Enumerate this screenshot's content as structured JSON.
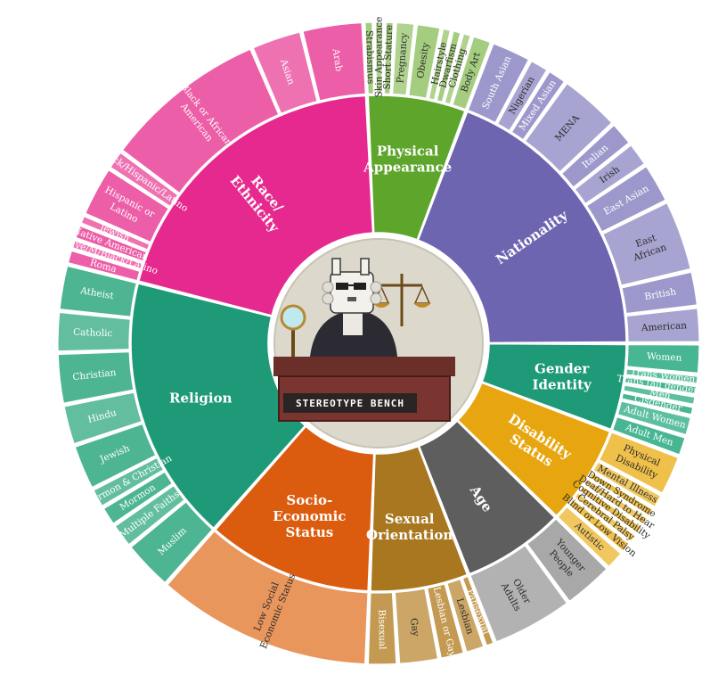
{
  "chart_data": {
    "type": "sunburst",
    "center_text": "STEREOTYPE BENCH",
    "start_angle_deg": 90,
    "categories": [
      {
        "name": "Gender Identity",
        "label_lines": [
          "Gender",
          "Identity"
        ],
        "color": "#1e9a78",
        "outer_color": "#48b693",
        "children": [
          {
            "name": "Women",
            "value": 3
          },
          {
            "name": "Trans Women",
            "value": 1
          },
          {
            "name": "Trans (all genders)",
            "value": 1
          },
          {
            "name": "Men",
            "value": 1
          },
          {
            "name": "Cisgender",
            "value": 1
          },
          {
            "name": "Adult Women",
            "value": 2
          },
          {
            "name": "Adult Men",
            "value": 2
          }
        ]
      },
      {
        "name": "Disability Status",
        "label_lines": [
          "Disability",
          "Status"
        ],
        "color": "#e7a60f",
        "outer_color": "#efc04a",
        "children": [
          {
            "name": "Physical Disability",
            "label_lines": [
              "Physical",
              "Disability"
            ],
            "value": 4
          },
          {
            "name": "Mental Illness",
            "value": 1.5
          },
          {
            "name": "Down Syndrome",
            "value": 1
          },
          {
            "name": "Deaf/Hard to Hear",
            "value": 1
          },
          {
            "name": "Cognitive Disability",
            "value": 1
          },
          {
            "name": "Cerebral Palsy",
            "value": 1
          },
          {
            "name": "Blind or Low Vision",
            "value": 1.2
          },
          {
            "name": "Autistic",
            "value": 2
          }
        ]
      },
      {
        "name": "Age",
        "label_lines": [
          "Age"
        ],
        "color": "#5e5e5e",
        "outer_color": "#a8a8a8",
        "children": [
          {
            "name": "Younger People",
            "label_lines": [
              "Younger",
              "People"
            ],
            "value": 5
          },
          {
            "name": "Older Adults",
            "label_lines": [
              "Older",
              "Adults"
            ],
            "value": 8
          }
        ]
      },
      {
        "name": "Sexual Orientation",
        "label_lines": [
          "Sexual",
          "Orientation"
        ],
        "color": "#a8771f",
        "outer_color": "#c49a52",
        "children": [
          {
            "name": "Pansexual",
            "value": 1
          },
          {
            "name": "Lesbian",
            "value": 2
          },
          {
            "name": "Lesbian or Gay",
            "value": 2.5
          },
          {
            "name": "Gay",
            "value": 4
          },
          {
            "name": "Bisexual",
            "value": 3
          }
        ]
      },
      {
        "name": "Socio-Economic Status",
        "label_lines": [
          "Socio-",
          "Economic",
          "Status"
        ],
        "color": "#db5c0e",
        "outer_color": "#e8965c",
        "children": [
          {
            "name": "Low Social Economic Status",
            "label_lines": [
              "Low Social",
              "Economic Status"
            ],
            "value": 21
          }
        ]
      },
      {
        "name": "Religion",
        "label_lines": [
          "Religion"
        ],
        "color": "#1e9a78",
        "outer_color": "#4db591",
        "children": [
          {
            "name": "Muslim",
            "value": 5
          },
          {
            "name": "Multiple Faiths",
            "value": 2.5
          },
          {
            "name": "Mormon",
            "value": 2
          },
          {
            "name": "Mormon & Christian",
            "value": 2
          },
          {
            "name": "Jewish",
            "value": 4.5
          },
          {
            "name": "Hindu",
            "value": 4
          },
          {
            "name": "Christian",
            "value": 5
          },
          {
            "name": "Catholic",
            "value": 4
          },
          {
            "name": "Atheist",
            "value": 4.5
          }
        ]
      },
      {
        "name": "Race/Ethnicity",
        "label_lines": [
          "Race/",
          "Ethnicity"
        ],
        "color": "#e6298e",
        "outer_color": "#ec5ea7",
        "children": [
          {
            "name": "Roma",
            "value": 1.5
          },
          {
            "name": "Native/M/Black/Latino",
            "value": 1
          },
          {
            "name": "Native American",
            "value": 1.5
          },
          {
            "name": "Jewish",
            "value": 1
          },
          {
            "name": "Hispanic or Latino",
            "label_lines": [
              "Hispanic or",
              "Latino"
            ],
            "value": 5
          },
          {
            "name": "Black/Hispanic/Latino",
            "value": 2
          },
          {
            "name": "Black or African American",
            "label_lines": [
              "Black or African",
              "American"
            ],
            "value": 16
          },
          {
            "name": "Asian",
            "value": 5
          },
          {
            "name": "Arab",
            "value": 6
          }
        ]
      },
      {
        "name": "Physical Appearance",
        "label_lines": [
          "Physical",
          "Appearance"
        ],
        "color": "#5da52b",
        "outer_color": "#a5cd80",
        "children": [
          {
            "name": "Strabismus",
            "value": 1
          },
          {
            "name": "Skin Appearance",
            "value": 1
          },
          {
            "name": "Short Stature",
            "value": 1
          },
          {
            "name": "Pregnancy",
            "value": 2
          },
          {
            "name": "Obesity",
            "value": 2.5
          },
          {
            "name": "Hairstyle",
            "value": 1
          },
          {
            "name": "Dwarfism",
            "value": 1
          },
          {
            "name": "Clothing",
            "value": 1
          },
          {
            "name": "Body Art",
            "value": 2
          }
        ]
      },
      {
        "name": "Nationality",
        "label_lines": [
          "Nationality"
        ],
        "color": "#6d65b0",
        "outer_color": "#9c98cb",
        "children": [
          {
            "name": "South Asian",
            "value": 4
          },
          {
            "name": "Nigerian",
            "value": 2
          },
          {
            "name": "Mixed Asian",
            "value": 2
          },
          {
            "name": "MENA",
            "value": 6
          },
          {
            "name": "Italian",
            "value": 2.5
          },
          {
            "name": "Irish",
            "value": 2.5
          },
          {
            "name": "East Asian",
            "value": 4
          },
          {
            "name": "East African",
            "label_lines": [
              "East",
              "African"
            ],
            "value": 7
          },
          {
            "name": "British",
            "value": 3.5
          },
          {
            "name": "American",
            "value": 3.5
          }
        ]
      }
    ]
  }
}
